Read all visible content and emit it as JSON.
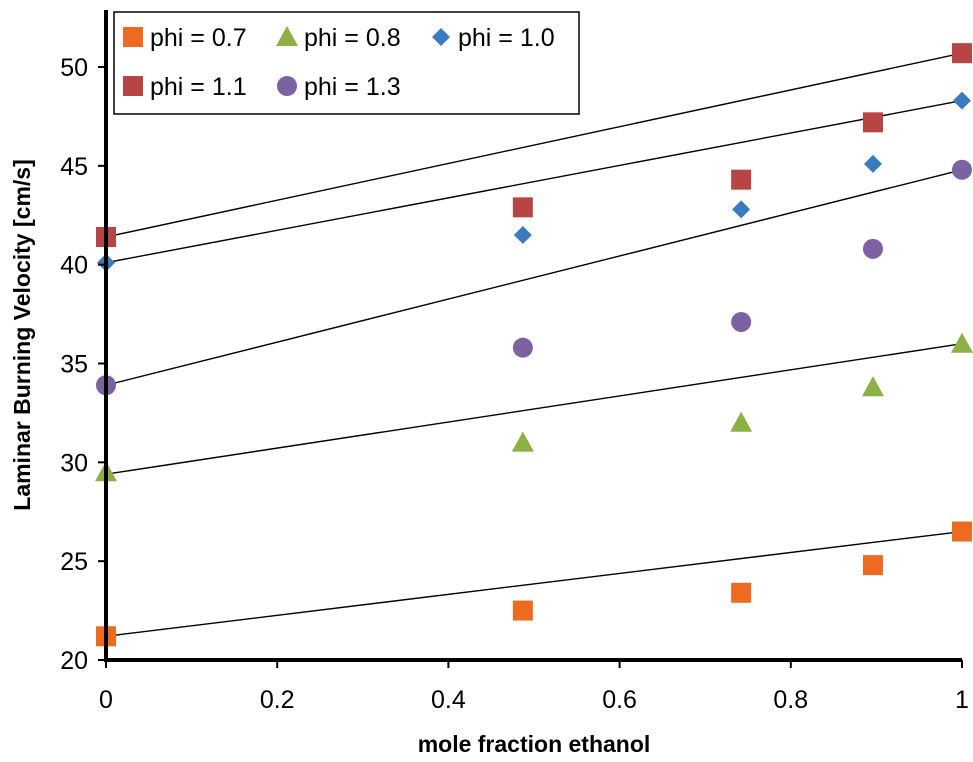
{
  "chart_data": {
    "type": "scatter",
    "title": "",
    "xlabel": "mole fraction ethanol",
    "ylabel": "Laminar Burning Velocity [cm/s]",
    "xlim": [
      0,
      1
    ],
    "ylim": [
      20,
      52.5
    ],
    "xticks": [
      "0",
      "0.2",
      "0.4",
      "0.6",
      "0.8",
      "1"
    ],
    "yticks": [
      "20",
      "25",
      "30",
      "35",
      "40",
      "45",
      "50"
    ],
    "grid": false,
    "legend": "top-left",
    "series": [
      {
        "name": "phi = 0.7",
        "marker": "square",
        "color": "#ED6B21",
        "x": [
          0,
          0.487,
          0.742,
          0.896,
          1
        ],
        "y": [
          21.2,
          22.5,
          23.4,
          24.8,
          26.5
        ],
        "trendline": [
          [
            0,
            21.2
          ],
          [
            1,
            26.5
          ]
        ]
      },
      {
        "name": "phi = 0.8",
        "marker": "triangle",
        "color": "#8CB043",
        "x": [
          0,
          0.487,
          0.742,
          0.896,
          1
        ],
        "y": [
          29.5,
          31.0,
          32.0,
          33.8,
          36.0
        ],
        "trendline": [
          [
            0,
            29.4
          ],
          [
            1,
            36.0
          ]
        ]
      },
      {
        "name": "phi = 1.0",
        "marker": "diamond",
        "color": "#3A7BBF",
        "x": [
          0,
          0.487,
          0.742,
          0.896,
          1
        ],
        "y": [
          40.1,
          41.5,
          42.8,
          45.1,
          48.3
        ],
        "trendline": [
          [
            0,
            40.1
          ],
          [
            1,
            48.3
          ]
        ]
      },
      {
        "name": "phi = 1.1",
        "marker": "square",
        "color": "#B84444",
        "x": [
          0,
          0.487,
          0.742,
          0.896,
          1
        ],
        "y": [
          41.4,
          42.9,
          44.3,
          47.2,
          50.7
        ],
        "trendline": [
          [
            0,
            41.4
          ],
          [
            1,
            50.7
          ]
        ]
      },
      {
        "name": "phi = 1.3",
        "marker": "circle",
        "color": "#7D62A3",
        "x": [
          0,
          0.487,
          0.742,
          0.896,
          1
        ],
        "y": [
          33.9,
          35.8,
          37.1,
          40.8,
          44.8
        ],
        "trendline": [
          [
            0,
            33.9
          ],
          [
            1,
            44.8
          ]
        ]
      }
    ]
  }
}
